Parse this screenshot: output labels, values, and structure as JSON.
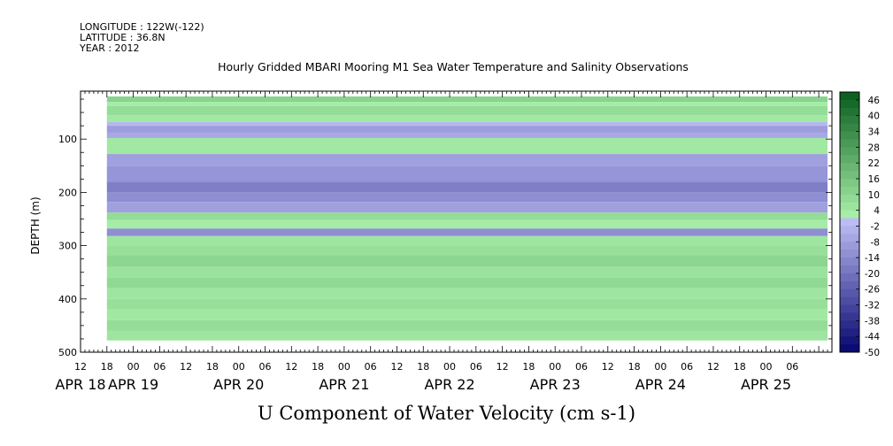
{
  "header": {
    "longitude": "LONGITUDE : 122W(-122)",
    "latitude": "LATITUDE : 36.8N",
    "year": "YEAR : 2012"
  },
  "chart_data": {
    "type": "heatmap",
    "title": "Hourly Gridded MBARI Mooring M1 Sea Water Temperature and Salinity Observations",
    "xlabel": "U Component of Water Velocity (cm s-1)",
    "ylabel": "DEPTH (m)",
    "y_ticks": [
      100,
      200,
      300,
      400,
      500
    ],
    "ylim": [
      500,
      10
    ],
    "y_reversed": true,
    "x_hour_ticks": [
      "12",
      "18",
      "00",
      "06",
      "12",
      "18",
      "00",
      "06",
      "12",
      "18",
      "00",
      "06",
      "12",
      "18",
      "00",
      "06",
      "12",
      "18",
      "00",
      "06",
      "12",
      "18",
      "00",
      "06",
      "12",
      "18",
      "00",
      "06"
    ],
    "x_date_labels": [
      "APR 18",
      "APR 19",
      "APR 20",
      "APR 21",
      "APR 22",
      "APR 23",
      "APR 24",
      "APR 25"
    ],
    "colorbar": {
      "labels": [
        46,
        40,
        34,
        28,
        22,
        16,
        10,
        4,
        -2,
        -8,
        -14,
        -20,
        -26,
        -32,
        -38,
        -44,
        -50
      ],
      "range": [
        -50,
        49
      ]
    },
    "time_range_hours": [
      0,
      171
    ],
    "data_start_hour": 6,
    "data_end_hour": 170,
    "depth_layers": [
      {
        "depth": [
          20,
          30
        ],
        "u": 11
      },
      {
        "depth": [
          30,
          38
        ],
        "u": 3
      },
      {
        "depth": [
          38,
          55
        ],
        "u": 8
      },
      {
        "depth": [
          55,
          68
        ],
        "u": 4
      },
      {
        "depth": [
          68,
          75
        ],
        "u": -2
      },
      {
        "depth": [
          75,
          88
        ],
        "u": -9
      },
      {
        "depth": [
          88,
          98
        ],
        "u": -6
      },
      {
        "depth": [
          98,
          128
        ],
        "u": 4
      },
      {
        "depth": [
          128,
          150
        ],
        "u": -8
      },
      {
        "depth": [
          150,
          180
        ],
        "u": -11
      },
      {
        "depth": [
          180,
          200
        ],
        "u": -17
      },
      {
        "depth": [
          200,
          218
        ],
        "u": -13
      },
      {
        "depth": [
          218,
          238
        ],
        "u": -8
      },
      {
        "depth": [
          238,
          252
        ],
        "u": 8
      },
      {
        "depth": [
          252,
          268
        ],
        "u": 3
      },
      {
        "depth": [
          268,
          282
        ],
        "u": -13
      },
      {
        "depth": [
          282,
          300
        ],
        "u": 5
      },
      {
        "depth": [
          300,
          318
        ],
        "u": 7
      },
      {
        "depth": [
          318,
          340
        ],
        "u": 10
      },
      {
        "depth": [
          340,
          360
        ],
        "u": 6
      },
      {
        "depth": [
          360,
          380
        ],
        "u": 9
      },
      {
        "depth": [
          380,
          400
        ],
        "u": 5
      },
      {
        "depth": [
          400,
          420
        ],
        "u": 7
      },
      {
        "depth": [
          420,
          440
        ],
        "u": 4
      },
      {
        "depth": [
          440,
          460
        ],
        "u": 8
      },
      {
        "depth": [
          460,
          478
        ],
        "u": 5
      }
    ]
  }
}
